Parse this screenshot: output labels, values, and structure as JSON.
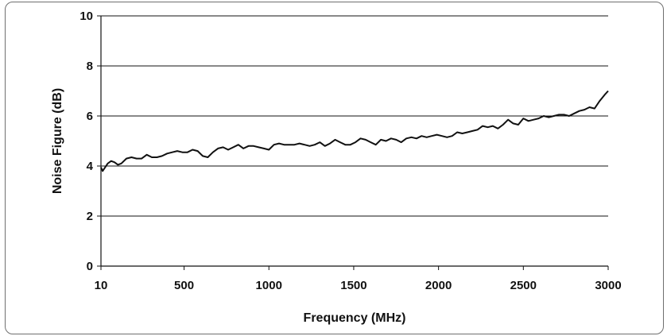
{
  "chart_data": {
    "type": "line",
    "xlabel": "Frequency (MHz)",
    "ylabel": "Noise Figure (dB)",
    "xlim": [
      10,
      3000
    ],
    "ylim": [
      0,
      10
    ],
    "x_ticks": [
      "10",
      "500",
      "1000",
      "1500",
      "2000",
      "2500",
      "3000"
    ],
    "y_ticks": [
      "0",
      "2",
      "4",
      "6",
      "8",
      "10"
    ],
    "grid": "horizontal",
    "series": [
      {
        "color": "#111111",
        "x": [
          10,
          20,
          35,
          50,
          70,
          90,
          110,
          130,
          160,
          190,
          220,
          250,
          280,
          310,
          340,
          370,
          400,
          430,
          460,
          490,
          520,
          550,
          580,
          610,
          640,
          670,
          700,
          730,
          760,
          790,
          820,
          850,
          880,
          910,
          940,
          970,
          1000,
          1030,
          1060,
          1090,
          1120,
          1150,
          1180,
          1210,
          1240,
          1270,
          1300,
          1330,
          1360,
          1390,
          1420,
          1450,
          1480,
          1510,
          1540,
          1570,
          1600,
          1630,
          1660,
          1690,
          1720,
          1750,
          1780,
          1810,
          1840,
          1870,
          1900,
          1930,
          1960,
          1990,
          2020,
          2050,
          2080,
          2110,
          2140,
          2170,
          2200,
          2230,
          2260,
          2290,
          2320,
          2350,
          2380,
          2410,
          2440,
          2470,
          2500,
          2530,
          2560,
          2590,
          2620,
          2650,
          2680,
          2710,
          2740,
          2770,
          2800,
          2830,
          2860,
          2890,
          2920,
          2950,
          2980,
          3000
        ],
        "y": [
          3.95,
          3.8,
          3.95,
          4.1,
          4.2,
          4.15,
          4.05,
          4.1,
          4.3,
          4.35,
          4.3,
          4.3,
          4.45,
          4.35,
          4.35,
          4.4,
          4.5,
          4.55,
          4.6,
          4.55,
          4.55,
          4.65,
          4.6,
          4.4,
          4.35,
          4.55,
          4.7,
          4.75,
          4.65,
          4.75,
          4.85,
          4.7,
          4.8,
          4.8,
          4.75,
          4.7,
          4.65,
          4.85,
          4.9,
          4.85,
          4.85,
          4.85,
          4.9,
          4.85,
          4.8,
          4.85,
          4.95,
          4.8,
          4.9,
          5.05,
          4.95,
          4.85,
          4.85,
          4.95,
          5.1,
          5.05,
          4.95,
          4.85,
          5.05,
          5.0,
          5.1,
          5.05,
          4.95,
          5.1,
          5.15,
          5.1,
          5.2,
          5.15,
          5.2,
          5.25,
          5.2,
          5.15,
          5.2,
          5.35,
          5.3,
          5.35,
          5.4,
          5.45,
          5.6,
          5.55,
          5.6,
          5.5,
          5.65,
          5.85,
          5.7,
          5.65,
          5.9,
          5.8,
          5.85,
          5.9,
          6.0,
          5.95,
          6.0,
          6.05,
          6.05,
          6.0,
          6.1,
          6.2,
          6.25,
          6.35,
          6.3,
          6.6,
          6.85,
          7.0
        ]
      }
    ]
  }
}
